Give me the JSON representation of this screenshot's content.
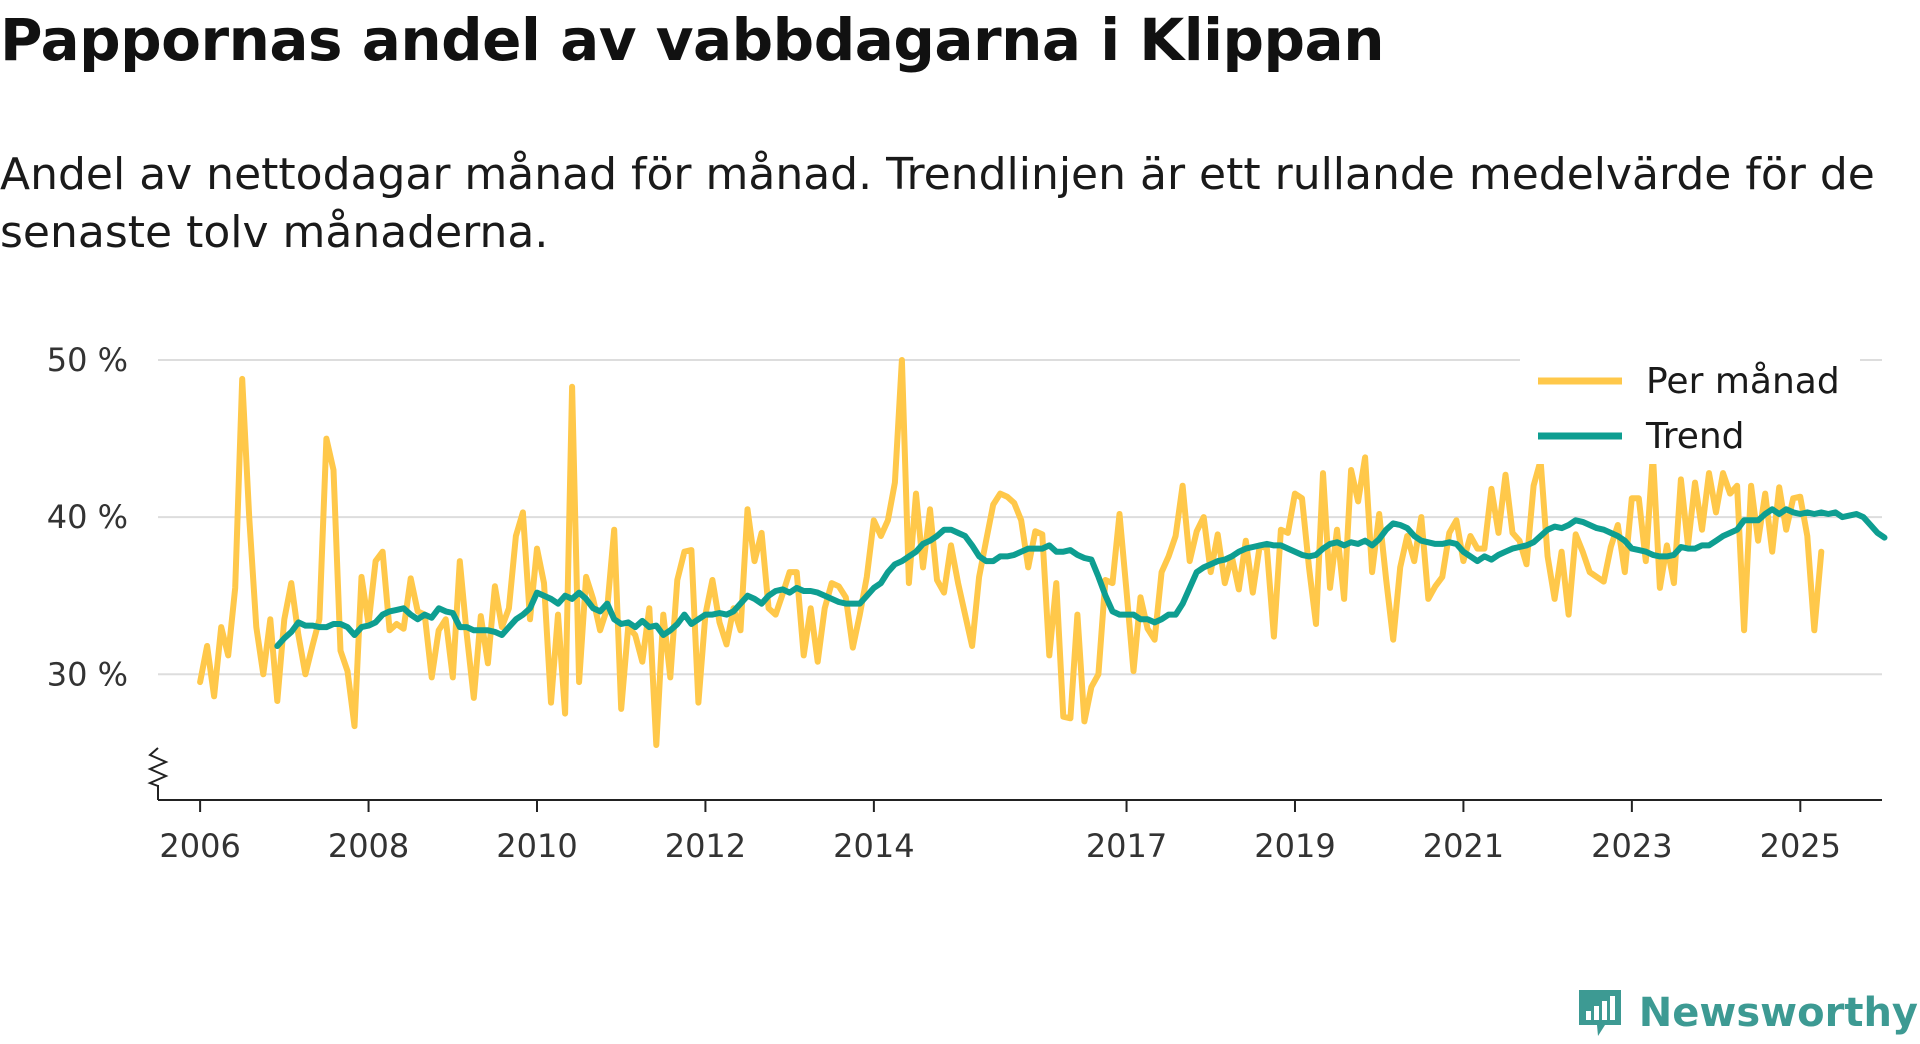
{
  "title": "Pappornas andel av vabbdagarna i Klippan",
  "subtitle": "Andel av nettodagar månad för månad. Trendlinjen är ett rullande medelvärde för de senaste tolv månaderna.",
  "brand": "Newsworthy",
  "colors": {
    "monthly": "#FFC84A",
    "trend": "#0E9E91",
    "grid": "#dddddd",
    "axis": "#222222",
    "brand": "#3d9a93"
  },
  "chart_data": {
    "type": "line",
    "title": "Pappornas andel av vabbdagarna i Klippan",
    "xlabel": "",
    "ylabel": "",
    "xlim": [
      2005.5,
      2025.97
    ],
    "ylim": [
      22,
      50
    ],
    "grid": true,
    "legend": "top-right",
    "x_ticks": [
      2006,
      2008,
      2010,
      2012,
      2014,
      2017,
      2019,
      2021,
      2023,
      2025
    ],
    "x_tick_labels": [
      "2006",
      "2008",
      "2010",
      "2012",
      "2014",
      "2017",
      "2019",
      "2021",
      "2023",
      "2025"
    ],
    "y_ticks": [
      30,
      40,
      50
    ],
    "y_tick_labels": [
      "30 %",
      "40 %",
      "50 %"
    ],
    "axis_break": true,
    "x_start": 2006.0,
    "x_step": 0.08333,
    "series": [
      {
        "name": "Per månad",
        "values": [
          29.5,
          31.8,
          28.6,
          33.0,
          31.2,
          35.5,
          48.8,
          40.0,
          33.0,
          30.0,
          33.5,
          28.3,
          33.5,
          35.8,
          32.5,
          30.0,
          31.8,
          33.5,
          45.0,
          43.0,
          31.5,
          30.2,
          26.7,
          36.2,
          33.2,
          37.2,
          37.8,
          32.8,
          33.2,
          32.9,
          36.1,
          34.0,
          33.8,
          29.8,
          32.8,
          33.5,
          29.8,
          37.2,
          32.5,
          28.5,
          33.7,
          30.7,
          35.6,
          33.0,
          34.2,
          38.8,
          40.3,
          33.5,
          38.0,
          35.8,
          28.2,
          33.8,
          27.5,
          48.3,
          29.5,
          36.2,
          34.8,
          32.8,
          34.2,
          39.2,
          27.8,
          33.0,
          32.5,
          30.8,
          34.2,
          25.5,
          33.8,
          29.8,
          36.0,
          37.8,
          37.9,
          28.2,
          33.8,
          36.0,
          33.3,
          31.9,
          34.2,
          32.8,
          40.5,
          37.2,
          39.0,
          34.2,
          33.8,
          35.1,
          36.5,
          36.5,
          31.2,
          34.2,
          30.8,
          34.2,
          35.8,
          35.6,
          34.9,
          31.7,
          33.8,
          36.2,
          39.8,
          38.8,
          39.8,
          42.2,
          50.0,
          35.8,
          41.5,
          36.8,
          40.5,
          36.0,
          35.2,
          38.2,
          35.8,
          33.8,
          31.8,
          36.2,
          38.5,
          40.8,
          41.5,
          41.3,
          40.9,
          39.8,
          36.8,
          39.1,
          38.9,
          31.2,
          35.8,
          27.3,
          27.2,
          33.8,
          27.0,
          29.2,
          30.0,
          36.0,
          35.8,
          40.2,
          35.3,
          30.2,
          34.9,
          32.9,
          32.2,
          36.5,
          37.5,
          38.8,
          42.0,
          37.2,
          39.1,
          40.0,
          36.5,
          38.9,
          35.8,
          37.5,
          35.4,
          38.5,
          35.2,
          38.2,
          38.0,
          32.4,
          39.2,
          39.0,
          41.5,
          41.2,
          36.8,
          33.2,
          42.8,
          35.5,
          39.2,
          34.8,
          43.0,
          41.0,
          43.8,
          36.5,
          40.2,
          36.0,
          32.2,
          36.8,
          38.8,
          37.2,
          40.0,
          34.8,
          35.6,
          36.2,
          39.0,
          39.8,
          37.2,
          38.8,
          38.0,
          38.0,
          41.8,
          39.0,
          42.7,
          39.0,
          38.5,
          37.0,
          42.0,
          43.6,
          37.5,
          34.8,
          37.8,
          33.8,
          38.9,
          37.8,
          36.5,
          36.2,
          35.9,
          38.1,
          39.5,
          36.5,
          41.2,
          41.2,
          37.2,
          44.0,
          35.5,
          38.2,
          35.8,
          42.4,
          38.2,
          42.2,
          39.2,
          42.8,
          40.3,
          42.8,
          41.5,
          42.0,
          32.8,
          42.0,
          38.5,
          41.5,
          37.8,
          41.9,
          39.2,
          41.2,
          41.3,
          38.8,
          32.8,
          37.8
        ]
      },
      {
        "name": "Trend",
        "x_start": 2006.917,
        "values": [
          31.8,
          32.3,
          32.7,
          33.3,
          33.1,
          33.1,
          33.0,
          33.0,
          33.2,
          33.2,
          33.0,
          32.5,
          33.0,
          33.1,
          33.3,
          33.8,
          34.0,
          34.1,
          34.2,
          33.8,
          33.5,
          33.8,
          33.6,
          34.2,
          34.0,
          33.9,
          33.0,
          33.0,
          32.8,
          32.8,
          32.8,
          32.7,
          32.5,
          33.0,
          33.5,
          33.8,
          34.2,
          35.2,
          35.0,
          34.8,
          34.5,
          35.0,
          34.8,
          35.2,
          34.8,
          34.2,
          34.0,
          34.5,
          33.5,
          33.2,
          33.3,
          33.0,
          33.4,
          33.0,
          33.1,
          32.5,
          32.8,
          33.2,
          33.8,
          33.2,
          33.5,
          33.8,
          33.8,
          33.9,
          33.8,
          34.0,
          34.5,
          35.0,
          34.8,
          34.5,
          35.0,
          35.3,
          35.4,
          35.2,
          35.5,
          35.3,
          35.3,
          35.2,
          35.0,
          34.8,
          34.6,
          34.5,
          34.5,
          34.5,
          35.0,
          35.5,
          35.8,
          36.5,
          37.0,
          37.2,
          37.5,
          37.8,
          38.3,
          38.5,
          38.8,
          39.2,
          39.2,
          39.0,
          38.8,
          38.2,
          37.5,
          37.2,
          37.2,
          37.5,
          37.5,
          37.6,
          37.8,
          38.0,
          38.0,
          38.0,
          38.2,
          37.8,
          37.8,
          37.9,
          37.6,
          37.4,
          37.3,
          36.2,
          35.0,
          34.0,
          33.8,
          33.8,
          33.8,
          33.5,
          33.5,
          33.3,
          33.5,
          33.8,
          33.8,
          34.5,
          35.5,
          36.5,
          36.8,
          37.0,
          37.2,
          37.3,
          37.5,
          37.8,
          38.0,
          38.1,
          38.2,
          38.3,
          38.2,
          38.2,
          38.0,
          37.8,
          37.6,
          37.5,
          37.6,
          38.0,
          38.3,
          38.4,
          38.2,
          38.4,
          38.3,
          38.5,
          38.2,
          38.6,
          39.2,
          39.6,
          39.5,
          39.3,
          38.8,
          38.5,
          38.4,
          38.3,
          38.3,
          38.4,
          38.3,
          37.8,
          37.5,
          37.2,
          37.5,
          37.3,
          37.6,
          37.8,
          38.0,
          38.1,
          38.2,
          38.4,
          38.8,
          39.2,
          39.4,
          39.3,
          39.5,
          39.8,
          39.7,
          39.5,
          39.3,
          39.2,
          39.0,
          38.8,
          38.5,
          38.0,
          37.9,
          37.8,
          37.6,
          37.5,
          37.5,
          37.6,
          38.1,
          38.0,
          38.0,
          38.2,
          38.2,
          38.5,
          38.8,
          39.0,
          39.2,
          39.8,
          39.8,
          39.8,
          40.2,
          40.5,
          40.2,
          40.5,
          40.3,
          40.2,
          40.3,
          40.2,
          40.3,
          40.2,
          40.3,
          40.0,
          40.1,
          40.2,
          40.0,
          39.5,
          39.0,
          38.7
        ]
      }
    ]
  }
}
